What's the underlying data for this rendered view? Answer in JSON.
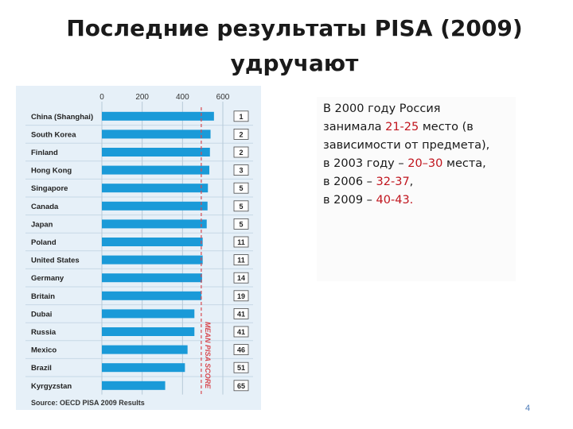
{
  "slide": {
    "title_line1": "Последние результаты PISA (2009)",
    "title_line2": "удручают",
    "page_number": "4"
  },
  "text": {
    "line1": "В 2000 году Россия",
    "line2_pre": "занимала ",
    "line2_hl": "21-25",
    "line2_post": " место (в",
    "line3": "зависимости от предмета),",
    "line4_pre": "в 2003 году – ",
    "line4_hl": "20–30",
    "line4_post": " места,",
    "line5_pre": "в 2006 – ",
    "line5_hl": "32-37",
    "line5_post": ",",
    "line6_pre": "в 2009 – ",
    "line6_hl": "40-43."
  },
  "chart_data": {
    "type": "bar",
    "orientation": "horizontal",
    "categories": [
      "China (Shanghai)",
      "South Korea",
      "Finland",
      "Hong Kong",
      "Singapore",
      "Canada",
      "Japan",
      "Poland",
      "United States",
      "Germany",
      "Britain",
      "Dubai",
      "Russia",
      "Mexico",
      "Brazil",
      "Kyrgyzstan"
    ],
    "values": [
      556,
      539,
      536,
      533,
      526,
      524,
      520,
      500,
      500,
      497,
      494,
      459,
      459,
      425,
      412,
      314
    ],
    "ranks": [
      "1",
      "2",
      "2",
      "3",
      "5",
      "5",
      "5",
      "11",
      "11",
      "14",
      "19",
      "41",
      "41",
      "46",
      "51",
      "65"
    ],
    "xticks": [
      "0",
      "200",
      "400",
      "600"
    ],
    "xlim": [
      0,
      600
    ],
    "mean_line": 493,
    "mean_label": "MEAN PISA SCORE",
    "source": "Source: OECD PISA 2009 Results",
    "bar_color": "#1a9ad8",
    "mean_color": "#d8484f",
    "grid": true
  }
}
